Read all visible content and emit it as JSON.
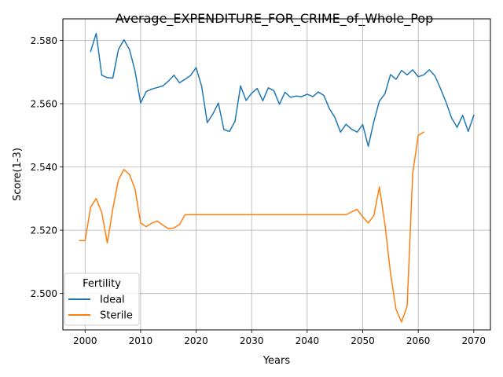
{
  "chart_data": {
    "type": "line",
    "title": "Average_EXPENDITURE_FOR_CRIME_of_Whole_Pop",
    "xlabel": "Years",
    "ylabel": "Score(1-3)",
    "xlim": [
      1996,
      2073
    ],
    "ylim": [
      2.4885,
      2.5868
    ],
    "xticks": [
      2000,
      2010,
      2020,
      2030,
      2040,
      2050,
      2060,
      2070
    ],
    "yticks": [
      2.5,
      2.52,
      2.54,
      2.56,
      2.58
    ],
    "ytick_labels": [
      "2.500",
      "2.520",
      "2.540",
      "2.560",
      "2.580"
    ],
    "grid": true,
    "legend": {
      "title": "Fertility",
      "placement": "lower-left"
    },
    "series": [
      {
        "name": "Ideal",
        "color": "#1f77b4",
        "points": [
          [
            2001,
            2.5765
          ],
          [
            2002,
            2.5822
          ],
          [
            2003,
            2.569
          ],
          [
            2004,
            2.5682
          ],
          [
            2005,
            2.5681
          ],
          [
            2006,
            2.5771
          ],
          [
            2007,
            2.5802
          ],
          [
            2008,
            2.5771
          ],
          [
            2009,
            2.5703
          ],
          [
            2010,
            2.5602
          ],
          [
            2011,
            2.5638
          ],
          [
            2012,
            2.5646
          ],
          [
            2013,
            2.5651
          ],
          [
            2014,
            2.5656
          ],
          [
            2015,
            2.5671
          ],
          [
            2016,
            2.569
          ],
          [
            2017,
            2.5666
          ],
          [
            2018,
            2.5677
          ],
          [
            2019,
            2.5689
          ],
          [
            2020,
            2.5714
          ],
          [
            2021,
            2.5654
          ],
          [
            2022,
            2.554
          ],
          [
            2023,
            2.5567
          ],
          [
            2024,
            2.5602
          ],
          [
            2025,
            2.5518
          ],
          [
            2026,
            2.5512
          ],
          [
            2027,
            2.5544
          ],
          [
            2028,
            2.5656
          ],
          [
            2029,
            2.561
          ],
          [
            2030,
            2.5633
          ],
          [
            2031,
            2.5648
          ],
          [
            2032,
            2.5609
          ],
          [
            2033,
            2.565
          ],
          [
            2034,
            2.5641
          ],
          [
            2035,
            2.5598
          ],
          [
            2036,
            2.5636
          ],
          [
            2037,
            2.562
          ],
          [
            2038,
            2.5624
          ],
          [
            2039,
            2.5622
          ],
          [
            2040,
            2.563
          ],
          [
            2041,
            2.5622
          ],
          [
            2042,
            2.5637
          ],
          [
            2043,
            2.5626
          ],
          [
            2044,
            2.5584
          ],
          [
            2045,
            2.5556
          ],
          [
            2046,
            2.551
          ],
          [
            2047,
            2.5535
          ],
          [
            2048,
            2.5519
          ],
          [
            2049,
            2.551
          ],
          [
            2050,
            2.5534
          ],
          [
            2051,
            2.5465
          ],
          [
            2052,
            2.5543
          ],
          [
            2053,
            2.5608
          ],
          [
            2054,
            2.5631
          ],
          [
            2055,
            2.5692
          ],
          [
            2056,
            2.5677
          ],
          [
            2057,
            2.5705
          ],
          [
            2058,
            2.5691
          ],
          [
            2059,
            2.5707
          ],
          [
            2060,
            2.5685
          ],
          [
            2061,
            2.5691
          ],
          [
            2062,
            2.5707
          ],
          [
            2063,
            2.5688
          ],
          [
            2064,
            2.5648
          ],
          [
            2065,
            2.5605
          ],
          [
            2066,
            2.5555
          ],
          [
            2067,
            2.5525
          ],
          [
            2068,
            2.5563
          ],
          [
            2069,
            2.5512
          ],
          [
            2070,
            2.5563
          ]
        ]
      },
      {
        "name": "Sterile",
        "color": "#ff7f0e",
        "points": [
          [
            1999,
            2.5167
          ],
          [
            2000,
            2.5167
          ],
          [
            2001,
            2.5273
          ],
          [
            2002,
            2.53
          ],
          [
            2003,
            2.5256
          ],
          [
            2004,
            2.516
          ],
          [
            2005,
            2.5268
          ],
          [
            2006,
            2.5359
          ],
          [
            2007,
            2.5392
          ],
          [
            2008,
            2.5376
          ],
          [
            2009,
            2.533
          ],
          [
            2010,
            2.5223
          ],
          [
            2011,
            2.5211
          ],
          [
            2012,
            2.5222
          ],
          [
            2013,
            2.5229
          ],
          [
            2014,
            2.5216
          ],
          [
            2015,
            2.5205
          ],
          [
            2016,
            2.5207
          ],
          [
            2017,
            2.5218
          ],
          [
            2018,
            2.5249
          ],
          [
            2019,
            2.5249
          ],
          [
            2020,
            2.5249
          ],
          [
            2025,
            2.5249
          ],
          [
            2030,
            2.5249
          ],
          [
            2035,
            2.5249
          ],
          [
            2040,
            2.5249
          ],
          [
            2045,
            2.5249
          ],
          [
            2047,
            2.5249
          ],
          [
            2048,
            2.5258
          ],
          [
            2049,
            2.5266
          ],
          [
            2050,
            2.5242
          ],
          [
            2051,
            2.5223
          ],
          [
            2052,
            2.5246
          ],
          [
            2053,
            2.5337
          ],
          [
            2054,
            2.5219
          ],
          [
            2055,
            2.5065
          ],
          [
            2056,
            2.495
          ],
          [
            2057,
            2.491
          ],
          [
            2058,
            2.496
          ],
          [
            2059,
            2.538
          ],
          [
            2060,
            2.55
          ],
          [
            2061,
            2.551
          ]
        ]
      }
    ]
  }
}
